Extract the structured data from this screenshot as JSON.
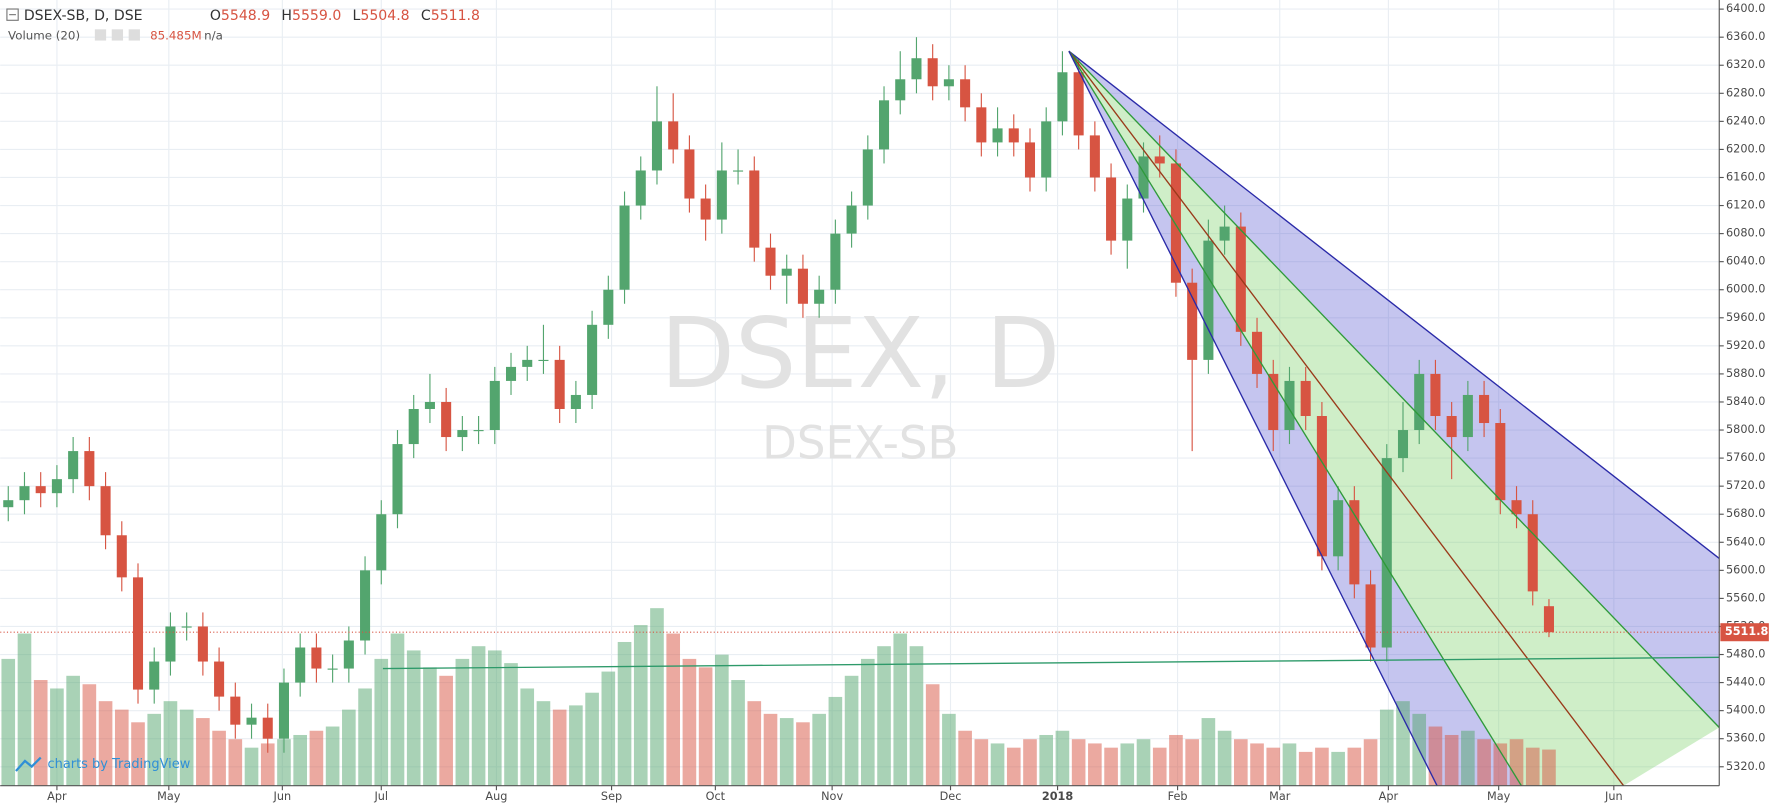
{
  "chart_data": {
    "type": "candlestick",
    "legend": {
      "symbol": "DSEX-SB, D, DSE",
      "open": {
        "label": "O",
        "value": "5548.9"
      },
      "high": {
        "label": "H",
        "value": "5559.0"
      },
      "low": {
        "label": "L",
        "value": "5504.8"
      },
      "close": {
        "label": "C",
        "value": "5511.8"
      },
      "volume_name": "Volume (20)",
      "volume_value": "85.485M",
      "volume_ma": "n/a"
    },
    "watermark": "DSEX, D",
    "watermark_sub": "DSEX-SB",
    "branding": "charts by TradingView",
    "up_color": "#53a56e",
    "down_color": "#d75442",
    "grid": true,
    "x": [
      0,
      1,
      2,
      3,
      4,
      5,
      6,
      7,
      8,
      9,
      10,
      11,
      12,
      13,
      14,
      15,
      16,
      17,
      18,
      19,
      20,
      21,
      22,
      23,
      24,
      25,
      26,
      27,
      28,
      29,
      30,
      31,
      32,
      33,
      34,
      35,
      36,
      37,
      38,
      39,
      40,
      41,
      42,
      43,
      44,
      45,
      46,
      47,
      48,
      49,
      50,
      51,
      52,
      53,
      54,
      55,
      56,
      57,
      58,
      59,
      60,
      61,
      62,
      63,
      64,
      65,
      66,
      67,
      68,
      69,
      70,
      71,
      72,
      73,
      74,
      75,
      76,
      77,
      78,
      79,
      80,
      81,
      82,
      83,
      84,
      85,
      86,
      87,
      88,
      89,
      90,
      91,
      92,
      93,
      94,
      95
    ],
    "open": [
      5690,
      5700,
      5720,
      5710,
      5730,
      5770,
      5720,
      5650,
      5590,
      5430,
      5470,
      5520,
      5520,
      5470,
      5420,
      5380,
      5390,
      5360,
      5440,
      5490,
      5460,
      5460,
      5500,
      5600,
      5680,
      5780,
      5830,
      5840,
      5790,
      5800,
      5800,
      5870,
      5890,
      5900,
      5900,
      5830,
      5850,
      5950,
      6000,
      6120,
      6170,
      6240,
      6200,
      6130,
      6100,
      6170,
      6170,
      6060,
      6020,
      6030,
      5980,
      6000,
      6080,
      6120,
      6200,
      6270,
      6300,
      6330,
      6290,
      6300,
      6260,
      6210,
      6230,
      6210,
      6160,
      6240,
      6310,
      6220,
      6160,
      6070,
      6130,
      6190,
      6180,
      6010,
      5900,
      6070,
      6090,
      5940,
      5880,
      5800,
      5870,
      5820,
      5620,
      5700,
      5580,
      5490,
      5760,
      5800,
      5880,
      5820,
      5790,
      5850,
      5810,
      5700,
      5680,
      5548.9
    ],
    "high": [
      5720,
      5740,
      5740,
      5750,
      5790,
      5790,
      5740,
      5670,
      5610,
      5490,
      5540,
      5540,
      5540,
      5490,
      5440,
      5410,
      5410,
      5460,
      5510,
      5510,
      5480,
      5520,
      5620,
      5700,
      5800,
      5850,
      5880,
      5860,
      5820,
      5820,
      5890,
      5910,
      5920,
      5950,
      5920,
      5870,
      5970,
      6020,
      6140,
      6190,
      6290,
      6280,
      6220,
      6150,
      6210,
      6200,
      6190,
      6080,
      6050,
      6050,
      6020,
      6100,
      6140,
      6220,
      6290,
      6340,
      6360,
      6350,
      6320,
      6320,
      6280,
      6260,
      6250,
      6230,
      6260,
      6340,
      6330,
      6240,
      6180,
      6150,
      6210,
      6220,
      6200,
      6030,
      6100,
      6120,
      6110,
      5960,
      5900,
      5890,
      5890,
      5840,
      5720,
      5720,
      5600,
      5780,
      5840,
      5900,
      5900,
      5840,
      5870,
      5870,
      5830,
      5720,
      5700,
      5559.0
    ],
    "low": [
      5670,
      5680,
      5690,
      5690,
      5710,
      5700,
      5630,
      5570,
      5410,
      5410,
      5450,
      5500,
      5450,
      5400,
      5360,
      5360,
      5340,
      5340,
      5420,
      5440,
      5440,
      5440,
      5480,
      5580,
      5660,
      5760,
      5810,
      5770,
      5770,
      5780,
      5780,
      5850,
      5870,
      5880,
      5810,
      5810,
      5830,
      5930,
      5980,
      6100,
      6150,
      6180,
      6110,
      6070,
      6080,
      6150,
      6040,
      6000,
      5980,
      5960,
      5960,
      5980,
      6060,
      6100,
      6180,
      6250,
      6280,
      6270,
      6270,
      6240,
      6190,
      6190,
      6190,
      6140,
      6140,
      6220,
      6200,
      6140,
      6050,
      6030,
      6110,
      6160,
      5990,
      5770,
      5880,
      6050,
      5920,
      5860,
      5770,
      5780,
      5800,
      5600,
      5600,
      5560,
      5470,
      5470,
      5740,
      5780,
      5800,
      5730,
      5770,
      5790,
      5680,
      5660,
      5550,
      5504.8
    ],
    "close": [
      5700,
      5720,
      5710,
      5730,
      5770,
      5720,
      5650,
      5590,
      5430,
      5470,
      5520,
      5520,
      5470,
      5420,
      5380,
      5390,
      5360,
      5440,
      5490,
      5460,
      5460,
      5500,
      5600,
      5680,
      5780,
      5830,
      5840,
      5790,
      5800,
      5800,
      5870,
      5890,
      5900,
      5900,
      5830,
      5850,
      5950,
      6000,
      6120,
      6170,
      6240,
      6200,
      6130,
      6100,
      6170,
      6170,
      6060,
      6020,
      6030,
      5980,
      6000,
      6080,
      6120,
      6200,
      6270,
      6300,
      6330,
      6290,
      6300,
      6260,
      6210,
      6230,
      6210,
      6160,
      6240,
      6310,
      6220,
      6160,
      6070,
      6130,
      6190,
      6180,
      6010,
      5900,
      6070,
      6090,
      5940,
      5880,
      5800,
      5870,
      5820,
      5620,
      5700,
      5580,
      5490,
      5760,
      5800,
      5880,
      5820,
      5790,
      5850,
      5810,
      5700,
      5680,
      5570,
      5511.8
    ],
    "volume": [
      300,
      360,
      250,
      230,
      260,
      240,
      200,
      180,
      150,
      170,
      200,
      180,
      160,
      130,
      110,
      90,
      100,
      110,
      120,
      130,
      140,
      180,
      230,
      300,
      360,
      320,
      280,
      260,
      300,
      330,
      320,
      290,
      230,
      200,
      180,
      190,
      220,
      270,
      340,
      380,
      420,
      360,
      300,
      280,
      310,
      250,
      200,
      170,
      160,
      150,
      170,
      210,
      260,
      300,
      330,
      360,
      330,
      240,
      170,
      130,
      110,
      100,
      90,
      110,
      120,
      130,
      110,
      100,
      90,
      100,
      110,
      90,
      120,
      110,
      160,
      130,
      110,
      100,
      90,
      100,
      80,
      90,
      80,
      90,
      110,
      180,
      200,
      170,
      140,
      120,
      130,
      110,
      100,
      110,
      90,
      85.485
    ],
    "xlim": [
      -0.5,
      105.5
    ],
    "ylim": [
      5293,
      6413
    ],
    "vlim": [
      0,
      480
    ],
    "xticks": [
      {
        "value": 3.0,
        "label": "Apr"
      },
      {
        "value": 9.9,
        "label": "May"
      },
      {
        "value": 16.9,
        "label": "Jun"
      },
      {
        "value": 23.0,
        "label": "Jul"
      },
      {
        "value": 30.1,
        "label": "Aug"
      },
      {
        "value": 37.2,
        "label": "Sep"
      },
      {
        "value": 43.6,
        "label": "Oct"
      },
      {
        "value": 50.8,
        "label": "Nov"
      },
      {
        "value": 58.1,
        "label": "Dec"
      },
      {
        "value": 64.7,
        "label": "2018"
      },
      {
        "value": 72.1,
        "label": "Feb"
      },
      {
        "value": 78.4,
        "label": "Mar"
      },
      {
        "value": 85.1,
        "label": "Apr"
      },
      {
        "value": 91.9,
        "label": "May"
      },
      {
        "value": 99.0,
        "label": "Jun"
      }
    ],
    "yticks": [
      {
        "value": 5320,
        "label": "5320.0"
      },
      {
        "value": 5360,
        "label": "5360.0"
      },
      {
        "value": 5400,
        "label": "5400.0"
      },
      {
        "value": 5440,
        "label": "5440.0"
      },
      {
        "value": 5480,
        "label": "5480.0"
      },
      {
        "value": 5520,
        "label": "5520.0"
      },
      {
        "value": 5560,
        "label": "5560.0"
      },
      {
        "value": 5600,
        "label": "5600.0"
      },
      {
        "value": 5640,
        "label": "5640.0"
      },
      {
        "value": 5680,
        "label": "5680.0"
      },
      {
        "value": 5720,
        "label": "5720.0"
      },
      {
        "value": 5760,
        "label": "5760.0"
      },
      {
        "value": 5800,
        "label": "5800.0"
      },
      {
        "value": 5840,
        "label": "5840.0"
      },
      {
        "value": 5880,
        "label": "5880.0"
      },
      {
        "value": 5920,
        "label": "5920.0"
      },
      {
        "value": 5960,
        "label": "5960.0"
      },
      {
        "value": 6000,
        "label": "6000.0"
      },
      {
        "value": 6040,
        "label": "6040.0"
      },
      {
        "value": 6080,
        "label": "6080.0"
      },
      {
        "value": 6120,
        "label": "6120.0"
      },
      {
        "value": 6160,
        "label": "6160.0"
      },
      {
        "value": 6200,
        "label": "6200.0"
      },
      {
        "value": 6240,
        "label": "6240.0"
      },
      {
        "value": 6280,
        "label": "6280.0"
      },
      {
        "value": 6320,
        "label": "6320.0"
      },
      {
        "value": 6360,
        "label": "6360.0"
      },
      {
        "value": 6400,
        "label": "6400.0"
      }
    ],
    "fan": {
      "origin": [
        65.4,
        6340
      ],
      "lines": [
        {
          "to": [
            105.5,
            5617
          ],
          "color": "#2a2aa8",
          "fill": "rgba(90,90,210,0.35)"
        },
        {
          "to": [
            105.5,
            5376
          ],
          "color": "#2e9a3a",
          "fill": "rgba(130,210,110,0.38)"
        },
        {
          "to": [
            99.6,
            5293
          ],
          "color": "#9a3a1a",
          "fill": "rgba(130,210,110,0.38)"
        },
        {
          "to": [
            93.3,
            5293
          ],
          "color": "#2e9a3a",
          "fill": "rgba(90,90,210,0.35)"
        },
        {
          "to": [
            88.1,
            5293
          ],
          "color": "#2a2aa8"
        }
      ]
    },
    "trendline": {
      "from": [
        23.1,
        5460
      ],
      "to": [
        105.5,
        5476
      ],
      "color": "#2e9a6a"
    }
  }
}
